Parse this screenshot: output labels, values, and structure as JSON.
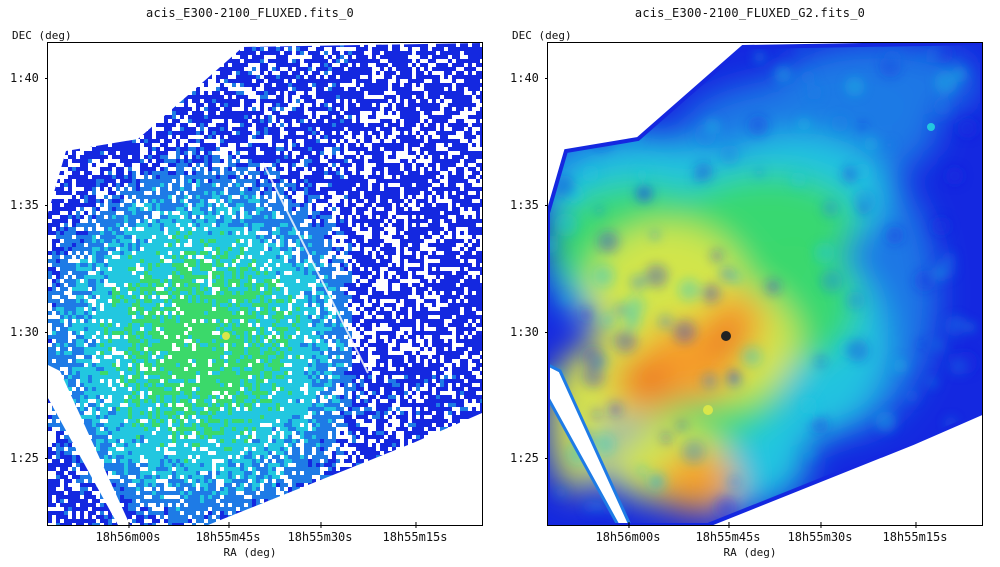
{
  "panels": [
    {
      "title": "acis_E300-2100_FLUXED.fits_0",
      "y_axis_label": "DEC (deg)",
      "x_axis_label": "RA (deg)",
      "y_ticks": [
        "1:40",
        "1:35",
        "1:30",
        "1:25"
      ],
      "x_ticks": [
        "18h56m00s",
        "18h55m45s",
        "18h55m30s",
        "18h55m15s"
      ],
      "style": "raw-counts",
      "colormap": [
        "#1428e0",
        "#1e7be6",
        "#22c7e0",
        "#3bd96a",
        "#d9e64a",
        "#f59a2a",
        "#e0301e"
      ]
    },
    {
      "title": "acis_E300-2100_FLUXED_G2.fits_0",
      "y_axis_label": "DEC (deg)",
      "x_axis_label": "RA (deg)",
      "y_ticks": [
        "1:40",
        "1:35",
        "1:30",
        "1:25"
      ],
      "x_ticks": [
        "18h56m00s",
        "18h55m45s",
        "18h55m30s",
        "18h55m15s"
      ],
      "style": "smoothed",
      "colormap": [
        "#1428e0",
        "#1e7be6",
        "#22c7e0",
        "#3bd96a",
        "#d9e64a",
        "#f59a2a",
        "#e0301e"
      ]
    }
  ]
}
